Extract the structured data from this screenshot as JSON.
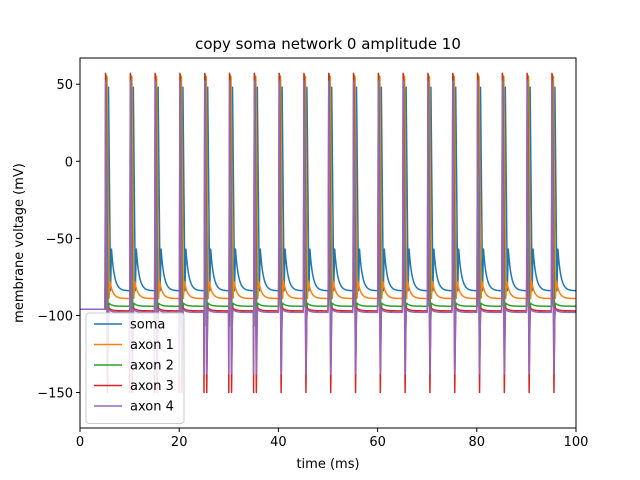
{
  "chart_data": {
    "type": "line",
    "title": "copy soma network 0 amplitude 10",
    "xlabel": "time (ms)",
    "ylabel": "membrane voltage (mV)",
    "xlim": [
      0,
      100
    ],
    "ylim": [
      -173,
      67
    ],
    "xticks": [
      0,
      20,
      40,
      60,
      80,
      100
    ],
    "yticks": [
      -150,
      -100,
      -50,
      0,
      50
    ],
    "grid": false,
    "legend_position": "lower-left",
    "rest_potential": -96,
    "spike_onset_ms": 5.0,
    "spike_period_ms": 5.0,
    "spike_count": 19,
    "series": [
      {
        "name": "soma",
        "color": "#1f77b4",
        "delay_ms": 0.6,
        "peak": 48,
        "undershoot": -57,
        "baseline": -84,
        "spike_low": -84
      },
      {
        "name": "axon 1",
        "color": "#ff7f0e",
        "delay_ms": 0.3,
        "peak": 55,
        "undershoot": -78,
        "baseline": -89,
        "spike_low": -89
      },
      {
        "name": "axon 2",
        "color": "#2ca02c",
        "delay_ms": 0.1,
        "peak": 56,
        "undershoot": -92,
        "baseline": -94,
        "spike_low": -107
      },
      {
        "name": "axon 3",
        "color": "#d62728",
        "delay_ms": 0.0,
        "peak": 57,
        "undershoot": -95,
        "baseline": -97,
        "spike_low": -150
      },
      {
        "name": "axon 4",
        "color": "#9467bd",
        "delay_ms": 0.0,
        "peak": 52,
        "undershoot": -96,
        "baseline": -98,
        "spike_low": -138
      }
    ]
  }
}
